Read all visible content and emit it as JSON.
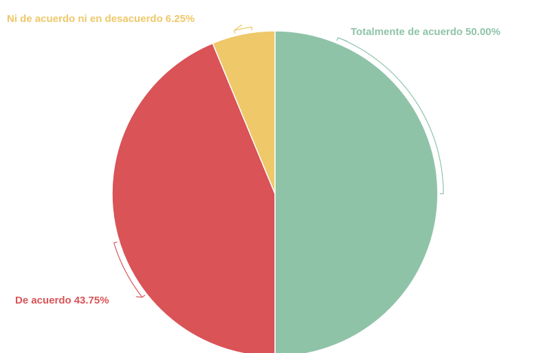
{
  "chart_data": {
    "type": "pie",
    "categories": [
      "Totalmente de acuerdo",
      "De acuerdo",
      "Ni de acuerdo ni en desacuerdo"
    ],
    "values": [
      50,
      43.75,
      6.25
    ],
    "value_labels": [
      "50.00%",
      "43.75%",
      "6.25%"
    ],
    "colors": [
      "#8fc3a8",
      "#d95357",
      "#eec869"
    ]
  }
}
